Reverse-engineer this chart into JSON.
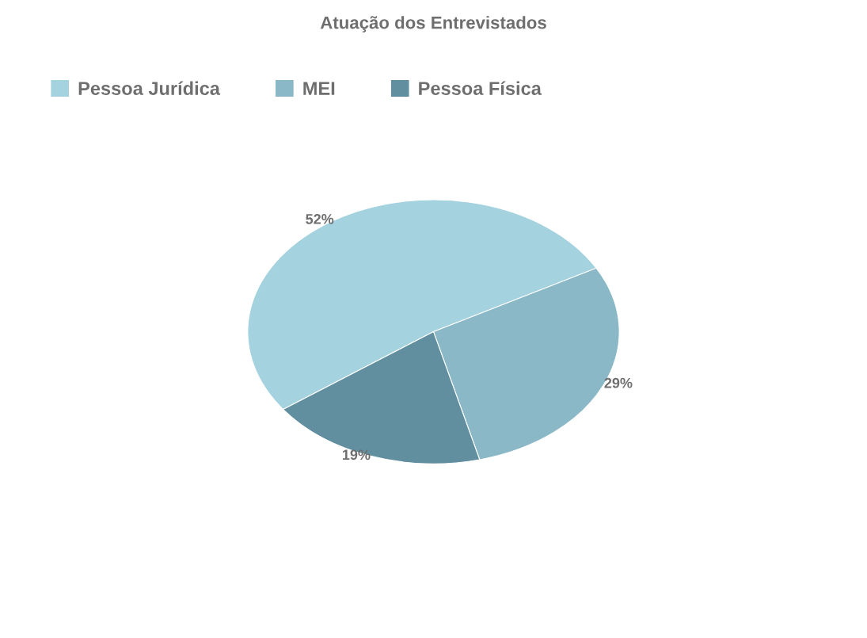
{
  "chart_data": {
    "type": "pie",
    "title": "Atuação dos Entrevistados",
    "categories": [
      "Pessoa Jurídica",
      "MEI",
      "Pessoa Física"
    ],
    "values": [
      52,
      29,
      19
    ],
    "colors": [
      "#a4d2df",
      "#8ab8c6",
      "#618f9f"
    ],
    "value_labels": [
      "52%",
      "29%",
      "19%"
    ],
    "legend": "top left"
  }
}
